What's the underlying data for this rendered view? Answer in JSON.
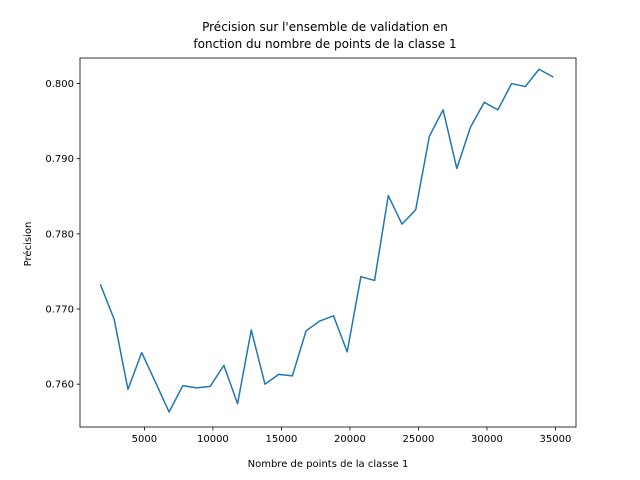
{
  "chart_data": {
    "type": "line",
    "title_lines": [
      "Précision sur l'ensemble de validation en",
      "fonction du nombre de points de la classe 1"
    ],
    "xlabel": "Nombre de points de la classe 1",
    "ylabel": "Précision",
    "xlim": [
      300,
      36500
    ],
    "ylim": [
      0.7543,
      0.8034
    ],
    "xticks": [
      5000,
      10000,
      15000,
      20000,
      25000,
      30000,
      35000
    ],
    "xtick_labels": [
      "5000",
      "10000",
      "15000",
      "20000",
      "25000",
      "30000",
      "35000"
    ],
    "yticks": [
      0.76,
      0.77,
      0.78,
      0.79,
      0.8
    ],
    "ytick_labels": [
      "0.760",
      "0.770",
      "0.780",
      "0.790",
      "0.800"
    ],
    "grid": false,
    "series": [
      {
        "color": "#1f77b4",
        "x": [
          1800,
          2800,
          3800,
          4800,
          5800,
          6800,
          7800,
          8800,
          9800,
          10800,
          11800,
          12800,
          13800,
          14800,
          15800,
          16800,
          17800,
          18800,
          19800,
          20800,
          21800,
          22800,
          23800,
          24800,
          25800,
          26800,
          27800,
          28800,
          29800,
          30800,
          31800,
          32800,
          33800,
          34800
        ],
        "y": [
          0.7732,
          0.7686,
          0.7593,
          0.7642,
          0.7603,
          0.7563,
          0.7598,
          0.7595,
          0.7597,
          0.7625,
          0.7574,
          0.7672,
          0.76,
          0.7613,
          0.7611,
          0.7671,
          0.7684,
          0.7691,
          0.7643,
          0.7743,
          0.7738,
          0.7851,
          0.7813,
          0.7832,
          0.793,
          0.7965,
          0.7887,
          0.7942,
          0.7975,
          0.7965,
          0.8,
          0.7996,
          0.8019,
          0.8009
        ]
      }
    ]
  }
}
